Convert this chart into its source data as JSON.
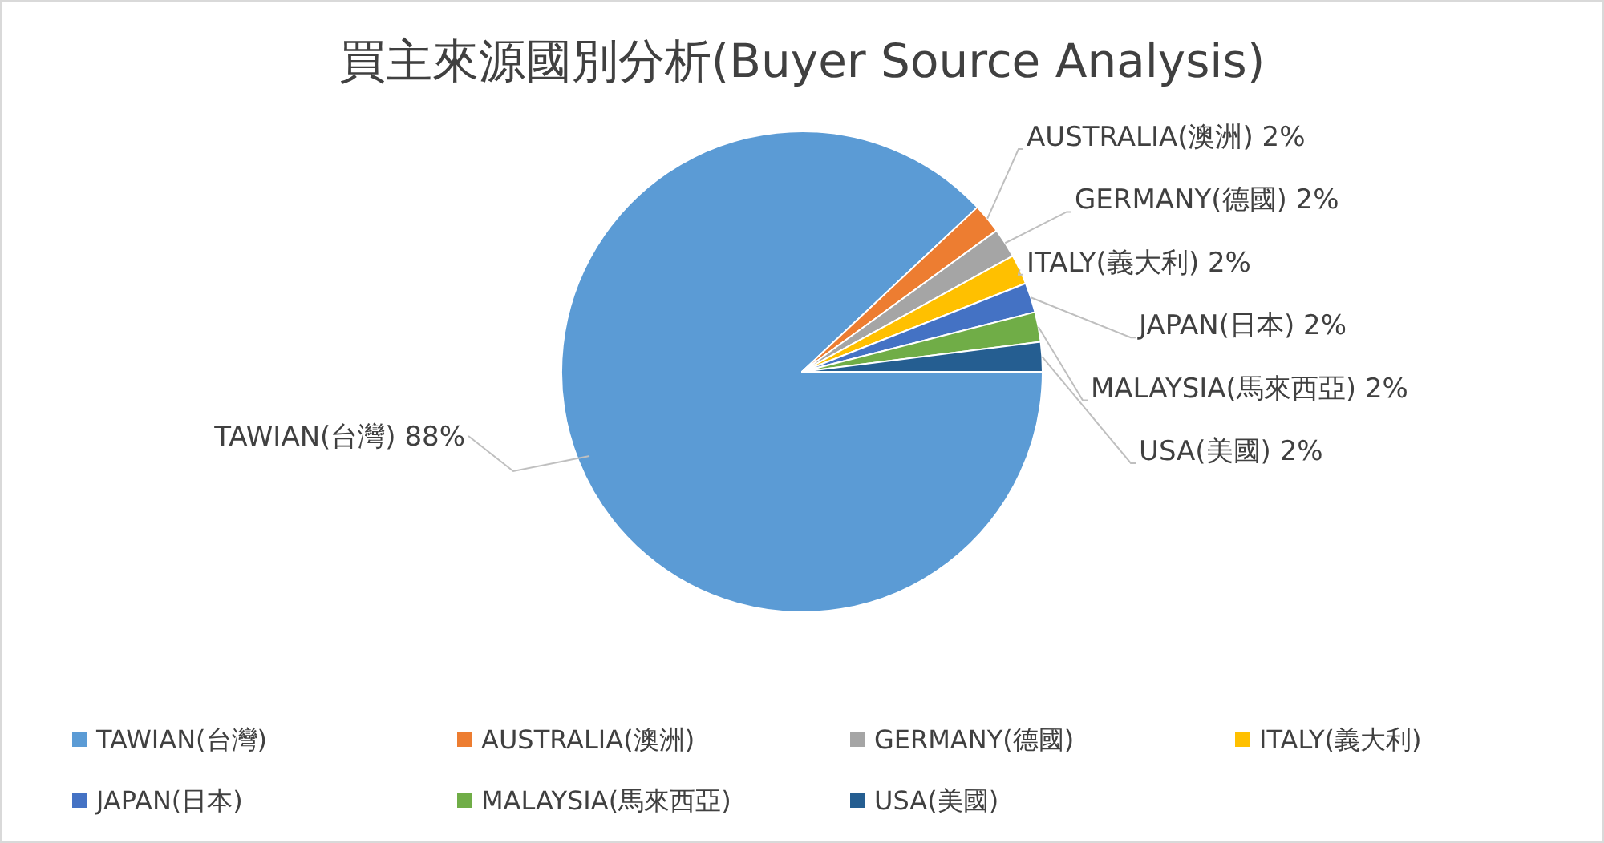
{
  "chart_data": {
    "type": "pie",
    "title": "買主來源國別分析(Buyer Source Analysis)",
    "categories": [
      "TAWIAN(台灣)",
      "AUSTRALIA(澳洲)",
      "GERMANY(德國)",
      "ITALY(義大利)",
      "JAPAN(日本)",
      "MALAYSIA(馬來西亞)",
      "USA(美國)"
    ],
    "values": [
      88,
      2,
      2,
      2,
      2,
      2,
      2
    ],
    "value_labels": [
      "88%",
      "2%",
      "2%",
      "2%",
      "2%",
      "2%",
      "2%"
    ],
    "colors": [
      "#5b9bd5",
      "#ed7d31",
      "#a5a5a5",
      "#ffc000",
      "#4472c4",
      "#70ad47",
      "#255e91"
    ],
    "legend": "bottom"
  }
}
